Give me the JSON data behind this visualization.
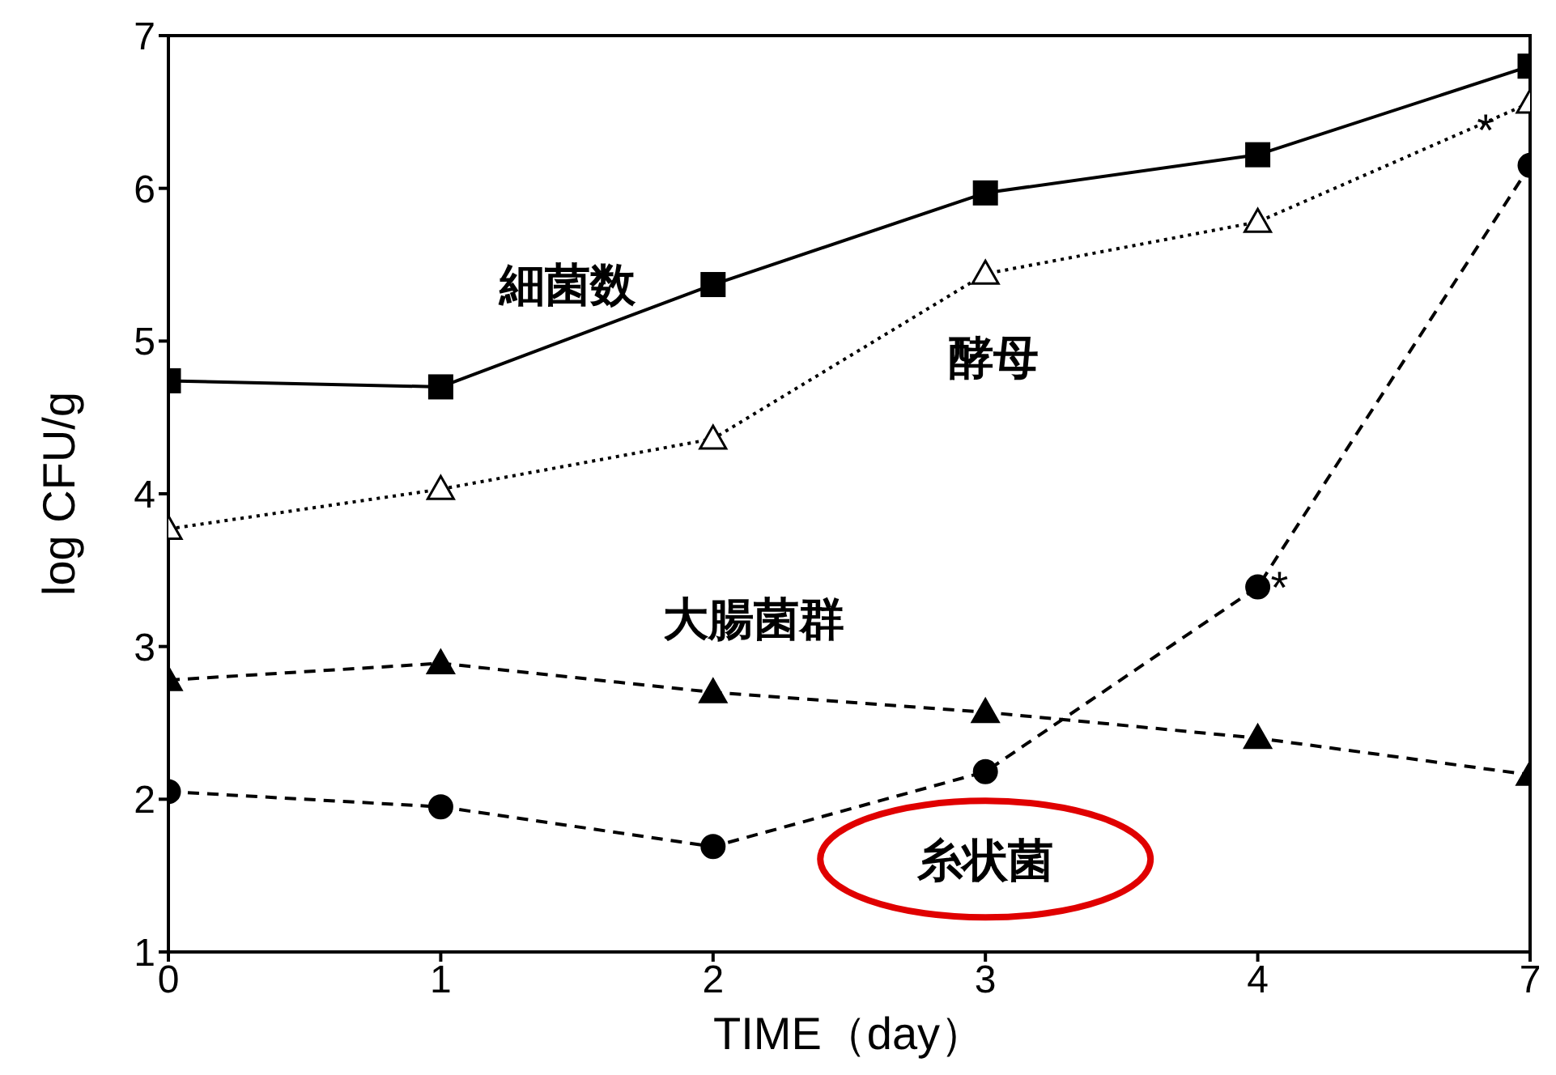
{
  "chart_data": {
    "type": "line",
    "xlabel": "TIME（day）",
    "ylabel": "log CFU/g",
    "categories": [
      "0",
      "1",
      "2",
      "3",
      "4",
      "7"
    ],
    "ylim": [
      1,
      7
    ],
    "yticks": [
      1,
      2,
      3,
      4,
      5,
      6,
      7
    ],
    "grid": false,
    "legend": false,
    "series": [
      {
        "name": "細菌数",
        "color": "#000000",
        "marker": "square",
        "line_style": "solid",
        "values": [
          4.74,
          4.7,
          5.37,
          5.97,
          6.22,
          6.8
        ]
      },
      {
        "name": "酵母",
        "color": "#000000",
        "marker": "triangle",
        "line_style": "dotted",
        "values": [
          3.77,
          4.03,
          4.36,
          5.44,
          5.78,
          6.56
        ]
      },
      {
        "name": "大腸菌群",
        "color": "#000000",
        "marker": "triangle",
        "line_style": "dashed",
        "values": [
          2.78,
          2.89,
          2.7,
          2.57,
          2.4,
          2.16
        ]
      },
      {
        "name": "糸状菌",
        "color": "#000000",
        "marker": "circle",
        "line_style": "dashed",
        "values": [
          2.05,
          1.95,
          1.69,
          2.18,
          3.39,
          6.15
        ]
      }
    ],
    "annotations": [
      {
        "text": "*",
        "x": "4",
        "y": 3.39
      },
      {
        "text": "*",
        "x": "7",
        "y": 6.15
      }
    ]
  }
}
